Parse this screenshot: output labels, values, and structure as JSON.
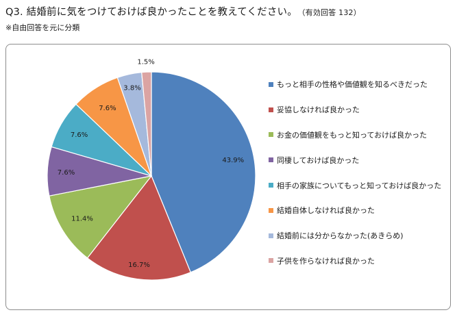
{
  "title": "Q3. 結婚前に気をつけておけば良かったことを教えてください。",
  "title_note": "（有効回答 132）",
  "subtitle": "※自由回答を元に分類",
  "chart_data": {
    "type": "pie",
    "title": "Q3. 結婚前に気をつけておけば良かったことを教えてください。",
    "note": "有効回答 132",
    "legend_position": "right",
    "unit": "%",
    "slices": [
      {
        "label": "もっと相手の性格や価値観を知るべきだった",
        "value": 43.9,
        "display": "43.9%",
        "color": "#4f81bd"
      },
      {
        "label": "妥協しなければ良かった",
        "value": 16.7,
        "display": "16.7%",
        "color": "#c0504d"
      },
      {
        "label": "お金の価値観をもっと知っておけば良かった",
        "value": 11.4,
        "display": "11.4%",
        "color": "#9bbb59"
      },
      {
        "label": "同棲しておけば良かった",
        "value": 7.6,
        "display": "7.6%",
        "color": "#8064a2"
      },
      {
        "label": "相手の家族についてもっと知っておけば良かった",
        "value": 7.6,
        "display": "7.6%",
        "color": "#4bacc6"
      },
      {
        "label": "結婚自体しなければ良かった",
        "value": 7.6,
        "display": "7.6%",
        "color": "#f79646"
      },
      {
        "label": "結婚前には分からなかった(あきらめ)",
        "value": 3.8,
        "display": "3.8%",
        "color": "#a5b9dc"
      },
      {
        "label": "子供を作らなければ良かった",
        "value": 1.5,
        "display": "1.5%",
        "color": "#dba4a3"
      }
    ]
  }
}
